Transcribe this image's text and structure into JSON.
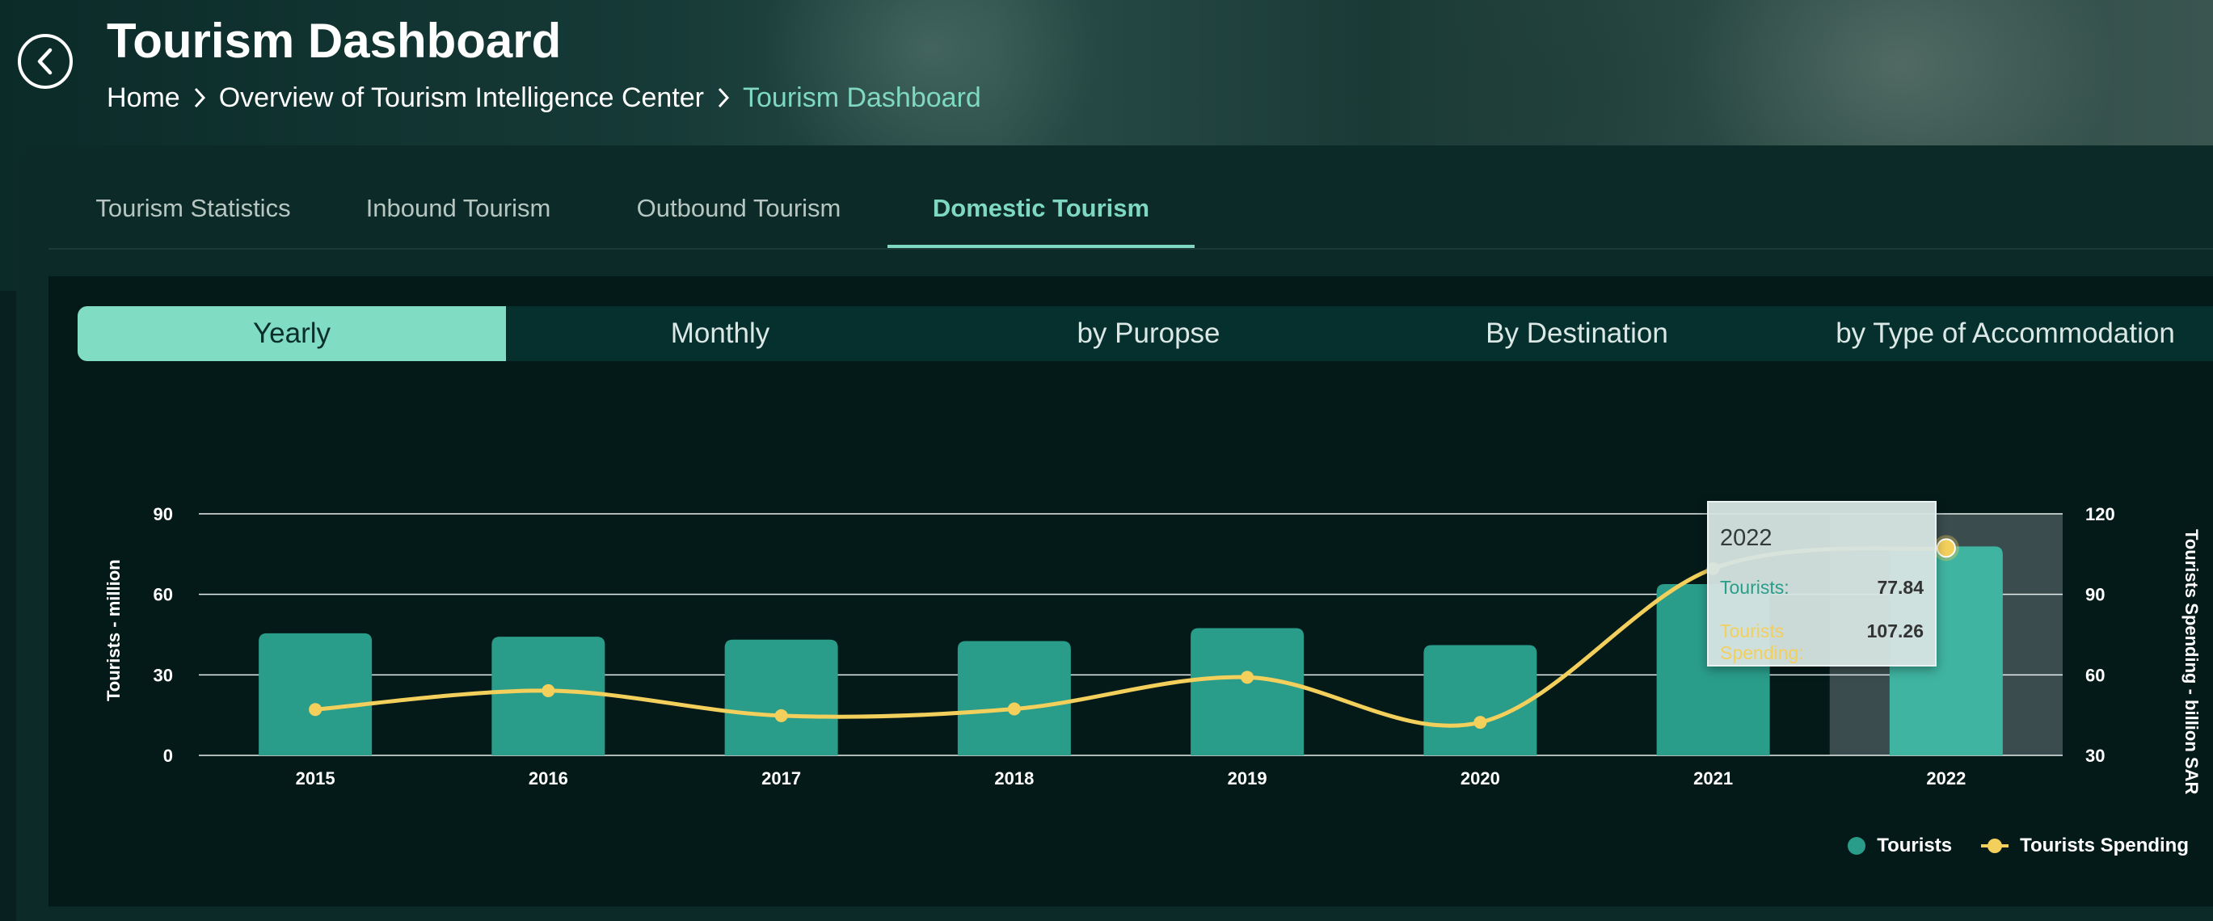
{
  "header": {
    "title": "Tourism Dashboard",
    "breadcrumb": [
      "Home",
      "Overview of Tourism Intelligence Center",
      "Tourism Dashboard"
    ]
  },
  "main_tabs": [
    {
      "label": "Tourism Statistics",
      "active": false
    },
    {
      "label": "Inbound Tourism",
      "active": false
    },
    {
      "label": "Outbound Tourism",
      "active": false
    },
    {
      "label": "Domestic Tourism",
      "active": true
    }
  ],
  "sub_tabs": [
    {
      "label": "Yearly",
      "active": true
    },
    {
      "label": "Monthly",
      "active": false
    },
    {
      "label": "by Puropse",
      "active": false
    },
    {
      "label": "By Destination",
      "active": false
    },
    {
      "label": "by Type of Accommodation",
      "active": false
    }
  ],
  "tooltip": {
    "year": "2022",
    "tourists_label": "Tourists:",
    "tourists_value": "77.84",
    "spending_label": "Tourists Spending:",
    "spending_value": "107.26"
  },
  "legend": {
    "tourists": "Tourists",
    "spending": "Tourists Spending"
  },
  "colors": {
    "bar": "#2a9d8a",
    "bar_highlight": "#3fb4a0",
    "line": "#f3cf5c",
    "accent": "#7ed9c0"
  },
  "chart_data": {
    "type": "bar",
    "categories": [
      "2015",
      "2016",
      "2017",
      "2018",
      "2019",
      "2020",
      "2021",
      "2022"
    ],
    "series": [
      {
        "name": "Tourists",
        "type": "bar",
        "axis": "left",
        "values": [
          45.5,
          44.2,
          43.1,
          42.6,
          47.4,
          41.1,
          63.8,
          77.84
        ]
      },
      {
        "name": "Tourists Spending",
        "type": "line",
        "axis": "right",
        "values": [
          47.1,
          54.1,
          44.8,
          47.3,
          59.1,
          42.3,
          99.6,
          107.26
        ]
      }
    ],
    "ylabel": "Tourists - million",
    "y2label": "Tourists Spending - billion SAR",
    "ylim": [
      0,
      90
    ],
    "yticks": [
      0,
      30,
      60,
      90
    ],
    "y2lim": [
      30,
      120
    ],
    "y2ticks": [
      30,
      60,
      90,
      120
    ],
    "highlight": "2022",
    "grid": true,
    "legend": "bottom-right"
  }
}
